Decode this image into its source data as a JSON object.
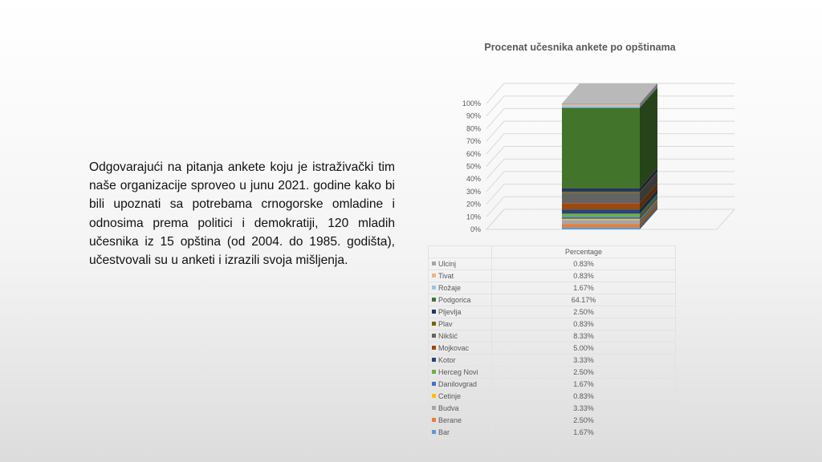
{
  "slide": {
    "body_text": "Odgovarajući na pitanja ankete koju je istraživački tim naše organizacije sproveo u junu 2021. godine kako bi bili upoznati sa potrebama crnogorske omladine i odnosima prema politici i demokratiji, 120 mladih učesnika iz 15 opština (od 2004. do 1985. godišta), učestvovali su u anketi i izrazili svoja mišljenja."
  },
  "chart_data": {
    "type": "bar",
    "stacked": true,
    "style": "3d-stacked-column-100-percent",
    "title": "Procenat učesnika ankete po opštinama",
    "categories": [
      "Percentage"
    ],
    "y_ticks": [
      "0%",
      "10%",
      "20%",
      "30%",
      "40%",
      "50%",
      "60%",
      "70%",
      "80%",
      "90%",
      "100%"
    ],
    "ylim": [
      0,
      1
    ],
    "grid": true,
    "legend": "data-table-below",
    "series": [
      {
        "name": "Ulcinj",
        "value": 0.0083,
        "label": "0.83%",
        "color": "#a5a5a5"
      },
      {
        "name": "Tivat",
        "value": 0.0083,
        "label": "0.83%",
        "color": "#f4b183"
      },
      {
        "name": "Rožaje",
        "value": 0.0167,
        "label": "1.67%",
        "color": "#9dc3e6"
      },
      {
        "name": "Podgorica",
        "value": 0.6417,
        "label": "64.17%",
        "color": "#43742c"
      },
      {
        "name": "Pljevlja",
        "value": 0.025,
        "label": "2.50%",
        "color": "#203864"
      },
      {
        "name": "Plav",
        "value": 0.0083,
        "label": "0.83%",
        "color": "#7f6000"
      },
      {
        "name": "Nikšić",
        "value": 0.0833,
        "label": "8.33%",
        "color": "#636363"
      },
      {
        "name": "Mojkovac",
        "value": 0.05,
        "label": "5.00%",
        "color": "#9e480e"
      },
      {
        "name": "Kotor",
        "value": 0.0333,
        "label": "3.33%",
        "color": "#264478"
      },
      {
        "name": "Herceg Novi",
        "value": 0.025,
        "label": "2.50%",
        "color": "#70ad47"
      },
      {
        "name": "Danilovgrad",
        "value": 0.0167,
        "label": "1.67%",
        "color": "#4472c4"
      },
      {
        "name": "Cetinje",
        "value": 0.0083,
        "label": "0.83%",
        "color": "#ffc000"
      },
      {
        "name": "Budva",
        "value": 0.0333,
        "label": "3.33%",
        "color": "#a5a5a5"
      },
      {
        "name": "Berane",
        "value": 0.025,
        "label": "2.50%",
        "color": "#ed7d31"
      },
      {
        "name": "Bar",
        "value": 0.0167,
        "label": "1.67%",
        "color": "#5b9bd5"
      }
    ]
  }
}
